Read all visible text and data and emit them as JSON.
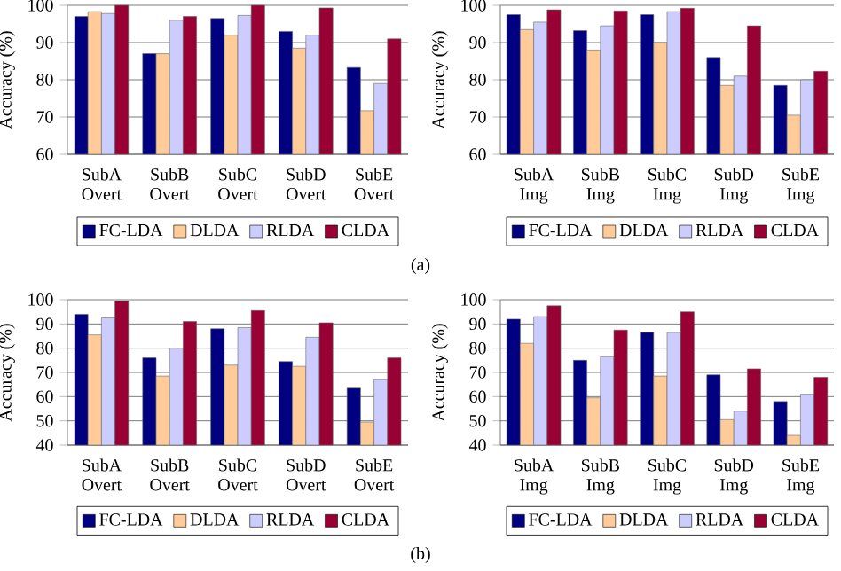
{
  "chart_data": [
    {
      "type": "bar",
      "ylabel": "Accuracy (%)",
      "categories": [
        "SubA Overt",
        "SubB Overt",
        "SubC Overt",
        "SubD Overt",
        "SubE Overt"
      ],
      "ylim": [
        60,
        100
      ],
      "yticks": [
        60,
        70,
        80,
        90,
        100
      ],
      "grid": "y",
      "legend": "bottom",
      "annotations": [
        "(a)"
      ],
      "series": [
        {
          "name": "FC-LDA",
          "color": "#000080",
          "values": [
            97,
            87,
            96.5,
            93,
            83.3
          ]
        },
        {
          "name": "DLDA",
          "color": "#ffcc99",
          "values": [
            98.3,
            87,
            92,
            88.5,
            71.7
          ]
        },
        {
          "name": "RLDA",
          "color": "#ccccff",
          "values": [
            97.8,
            96,
            97.3,
            92,
            79
          ]
        },
        {
          "name": "CLDA",
          "color": "#990033",
          "values": [
            100,
            97,
            100,
            99.3,
            91
          ]
        }
      ]
    },
    {
      "type": "bar",
      "ylabel": "Accuracy (%)",
      "categories": [
        "SubA Img",
        "SubB Img",
        "SubC Img",
        "SubD Img",
        "SubE Img"
      ],
      "ylim": [
        60,
        100
      ],
      "yticks": [
        60,
        70,
        80,
        90,
        100
      ],
      "grid": "y",
      "legend": "bottom",
      "series": [
        {
          "name": "FC-LDA",
          "color": "#000080",
          "values": [
            97.5,
            93.2,
            97.5,
            86,
            78.5
          ]
        },
        {
          "name": "DLDA",
          "color": "#ffcc99",
          "values": [
            93.5,
            88,
            90,
            78.5,
            70.5
          ]
        },
        {
          "name": "RLDA",
          "color": "#ccccff",
          "values": [
            95.5,
            94.5,
            98.3,
            81,
            80
          ]
        },
        {
          "name": "CLDA",
          "color": "#990033",
          "values": [
            98.8,
            98.5,
            99.2,
            94.5,
            82.3
          ]
        }
      ]
    },
    {
      "type": "bar",
      "ylabel": "Accuracy (%)",
      "categories": [
        "SubA Overt",
        "SubB Overt",
        "SubC Overt",
        "SubD Overt",
        "SubE Overt"
      ],
      "ylim": [
        40,
        100
      ],
      "yticks": [
        40,
        50,
        60,
        70,
        80,
        90,
        100
      ],
      "grid": "y",
      "legend": "bottom",
      "annotations": [
        "(b)"
      ],
      "series": [
        {
          "name": "FC-LDA",
          "color": "#000080",
          "values": [
            94,
            76,
            88,
            74.5,
            63.5
          ]
        },
        {
          "name": "DLDA",
          "color": "#ffcc99",
          "values": [
            85.5,
            68.5,
            73,
            72.5,
            49.5
          ]
        },
        {
          "name": "RLDA",
          "color": "#ccccff",
          "values": [
            92.5,
            80,
            88.5,
            84.5,
            67
          ]
        },
        {
          "name": "CLDA",
          "color": "#990033",
          "values": [
            99.5,
            91,
            95.5,
            90.5,
            76
          ]
        }
      ]
    },
    {
      "type": "bar",
      "ylabel": "Accuracy (%)",
      "categories": [
        "SubA Img",
        "SubB Img",
        "SubC Img",
        "SubD Img",
        "SubE Img"
      ],
      "ylim": [
        40,
        100
      ],
      "yticks": [
        40,
        50,
        60,
        70,
        80,
        90,
        100
      ],
      "grid": "y",
      "legend": "bottom",
      "series": [
        {
          "name": "FC-LDA",
          "color": "#000080",
          "values": [
            92,
            75,
            86.5,
            69,
            58
          ]
        },
        {
          "name": "DLDA",
          "color": "#ffcc99",
          "values": [
            82,
            59.5,
            68.5,
            50.5,
            44
          ]
        },
        {
          "name": "RLDA",
          "color": "#ccccff",
          "values": [
            93,
            76.5,
            86.5,
            54,
            61
          ]
        },
        {
          "name": "CLDA",
          "color": "#990033",
          "values": [
            97.5,
            87.5,
            95,
            71.5,
            68
          ]
        }
      ]
    }
  ]
}
